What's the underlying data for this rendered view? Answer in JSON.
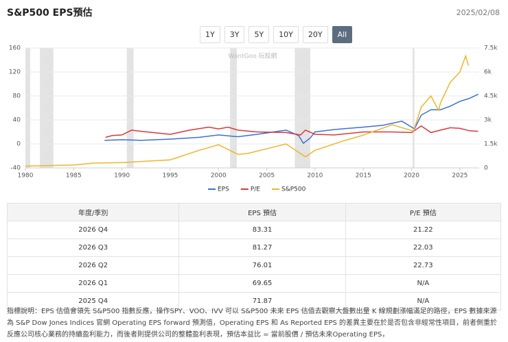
{
  "header": {
    "title": "S&P500 EPS預估",
    "date": "2025/02/08"
  },
  "range_buttons": {
    "items": [
      "1Y",
      "3Y",
      "5Y",
      "10Y",
      "20Y",
      "All"
    ],
    "active": 5
  },
  "chart_data": {
    "type": "line",
    "watermark": "WantGoo 玩股網",
    "xlim": [
      1980,
      2027
    ],
    "xticks": [
      1980,
      1985,
      1990,
      1995,
      2000,
      2005,
      2010,
      2015,
      2020,
      2025
    ],
    "ylim": [
      -40,
      160
    ],
    "yticks": [
      -40,
      0,
      40,
      80,
      120,
      160
    ],
    "y2lim": [
      0,
      7500
    ],
    "y2ticks": [
      {
        "value": 0,
        "label": "0"
      },
      {
        "value": 1500,
        "label": "1.5k"
      },
      {
        "value": 3000,
        "label": "3k"
      },
      {
        "value": 4500,
        "label": "4.5k"
      },
      {
        "value": 6000,
        "label": "6k"
      },
      {
        "value": 7500,
        "label": "7.5k"
      }
    ],
    "grid": true,
    "recessions": [
      [
        1980,
        1980.5
      ],
      [
        1981.5,
        1982.9
      ],
      [
        1990.5,
        1991.2
      ],
      [
        2001.2,
        2001.9
      ],
      [
        2007.9,
        2009.5
      ],
      [
        2020.1,
        2020.3
      ]
    ],
    "series": [
      {
        "name": "EPS",
        "color": "#3b6fd6",
        "axis": "y",
        "x": [
          1988.2,
          1990,
          1992,
          1995,
          1998,
          2000,
          2002,
          2004,
          2007,
          2008.3,
          2008.8,
          2009.5,
          2010,
          2012,
          2015,
          2017,
          2019,
          2020.3,
          2021,
          2022,
          2023,
          2024,
          2025,
          2026,
          2026.9
        ],
        "values": [
          6,
          7,
          6,
          8,
          11,
          15,
          12,
          16,
          23,
          14,
          1,
          10,
          20,
          24,
          28,
          31,
          38,
          25,
          48,
          57,
          57,
          63,
          71,
          76,
          83
        ]
      },
      {
        "name": "P/E",
        "color": "#d9383a",
        "axis": "y",
        "x": [
          1988.3,
          1989,
          1990,
          1991,
          1992,
          1995,
          1997,
          1999,
          2000,
          2001,
          2002,
          2004,
          2007,
          2008.5,
          2009,
          2010,
          2012,
          2015,
          2018,
          2020,
          2021,
          2022,
          2023,
          2024,
          2025,
          2026,
          2026.9
        ],
        "values": [
          11,
          14,
          15,
          23,
          21,
          16,
          23,
          28,
          25,
          28,
          23,
          20,
          19,
          15,
          23,
          16,
          15,
          20,
          20,
          19,
          30,
          19,
          23,
          27,
          26,
          22,
          21
        ]
      },
      {
        "name": "S&P500",
        "color": "#f0b429",
        "axis": "y2",
        "x": [
          1980,
          1985,
          1987,
          1990,
          1995,
          1998,
          2000,
          2002,
          2003,
          2007,
          2009,
          2010,
          2013,
          2015,
          2018,
          2020.2,
          2021,
          2022,
          2022.8,
          2023,
          2024,
          2025,
          2025.6,
          2025.9
        ],
        "values": [
          110,
          180,
          300,
          330,
          500,
          1100,
          1450,
          850,
          900,
          1500,
          700,
          1100,
          1700,
          2050,
          2700,
          2300,
          3800,
          4500,
          3600,
          4070,
          5350,
          6000,
          7000,
          6400
        ]
      }
    ],
    "legend": "bottom"
  },
  "table": {
    "columns": [
      "年度/季別",
      "EPS 預估",
      "P/E 預估"
    ],
    "rows": [
      [
        "2026 Q4",
        "83.31",
        "21.22"
      ],
      [
        "2026 Q3",
        "81.27",
        "22.03"
      ],
      [
        "2026 Q2",
        "76.01",
        "22.73"
      ],
      [
        "2026 Q1",
        "69.65",
        "N/A"
      ],
      [
        "2025 Q4",
        "71.87",
        "N/A"
      ]
    ]
  },
  "footnote": "指標說明：EPS 估值會領先 S&P500 指數反應，操作SPY、VOO、IVV 可以 S&P500 未來 EPS 估值去觀察大盤數出量 K 線規劃漲幅滿足的路徑，EPS 數據來源為 S&P Dow Jones Indices 官網 Operating EPS forward 預測值，Operating EPS 和 As Reported EPS 的差異主要在於是否包含非經常性項目，前者側重於反應公司核心業務的持續盈利能力，而後者則提供公司的整體盈利表現，預估本益比 = 當前股價 / 預估未來Operating EPS，"
}
